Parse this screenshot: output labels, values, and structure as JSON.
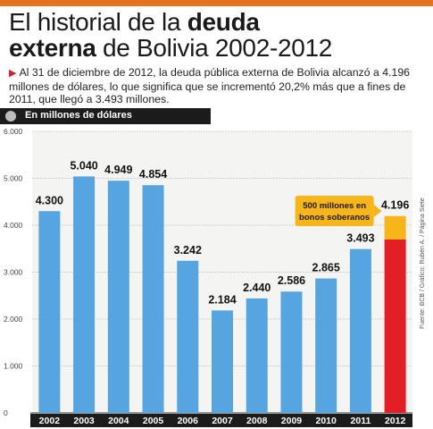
{
  "header": {
    "title_line1_prefix": "El historial de la ",
    "title_line1_bold": "deuda",
    "title_line2_bold": "externa",
    "title_line2_suffix": " de Bolivia 2002-2012",
    "lead_text": "Al 31 de diciembre de 2012, la deuda pública externa de Bolivia alcanzó a 4.196 millones de dólares, lo que significa que se incrementó 20,2% más que a fines de 2011, que llegó a 3.493 millones.",
    "subtitle": "En millones de dólares"
  },
  "source": "Fuente: BCB / Gráfico: Rubén A. / Página Siete",
  "colors": {
    "accent_bar": "#e8731e",
    "bar_blue": "#56a5e1",
    "bar_red": "#e31e24",
    "bar_gold": "#f6b518",
    "callout": "#f6b518"
  },
  "chart_data": {
    "type": "bar",
    "title": "",
    "xlabel": "",
    "ylabel": "",
    "ylim": [
      0,
      6000
    ],
    "yticks": [
      "0",
      "1.000",
      "2.000",
      "3.000",
      "4.000",
      "5.000",
      "6.000"
    ],
    "categories": [
      "2002",
      "2003",
      "2004",
      "2005",
      "2006",
      "2007",
      "2008",
      "2009",
      "2010",
      "2011",
      "2012"
    ],
    "values": [
      4300,
      5040,
      4949,
      4854,
      3242,
      2184,
      2440,
      2586,
      2865,
      3493,
      4196
    ],
    "value_labels": [
      "4.300",
      "5.040",
      "4.949",
      "4.854",
      "3.242",
      "2.184",
      "2.440",
      "2.586",
      "2.865",
      "3.493",
      "4.196"
    ],
    "stacked_segment": {
      "category": "2012",
      "base": 3696,
      "top": 4196
    },
    "annotation": {
      "line1": "500 millones en",
      "line2": "bonos soberanos"
    },
    "grid": true
  }
}
